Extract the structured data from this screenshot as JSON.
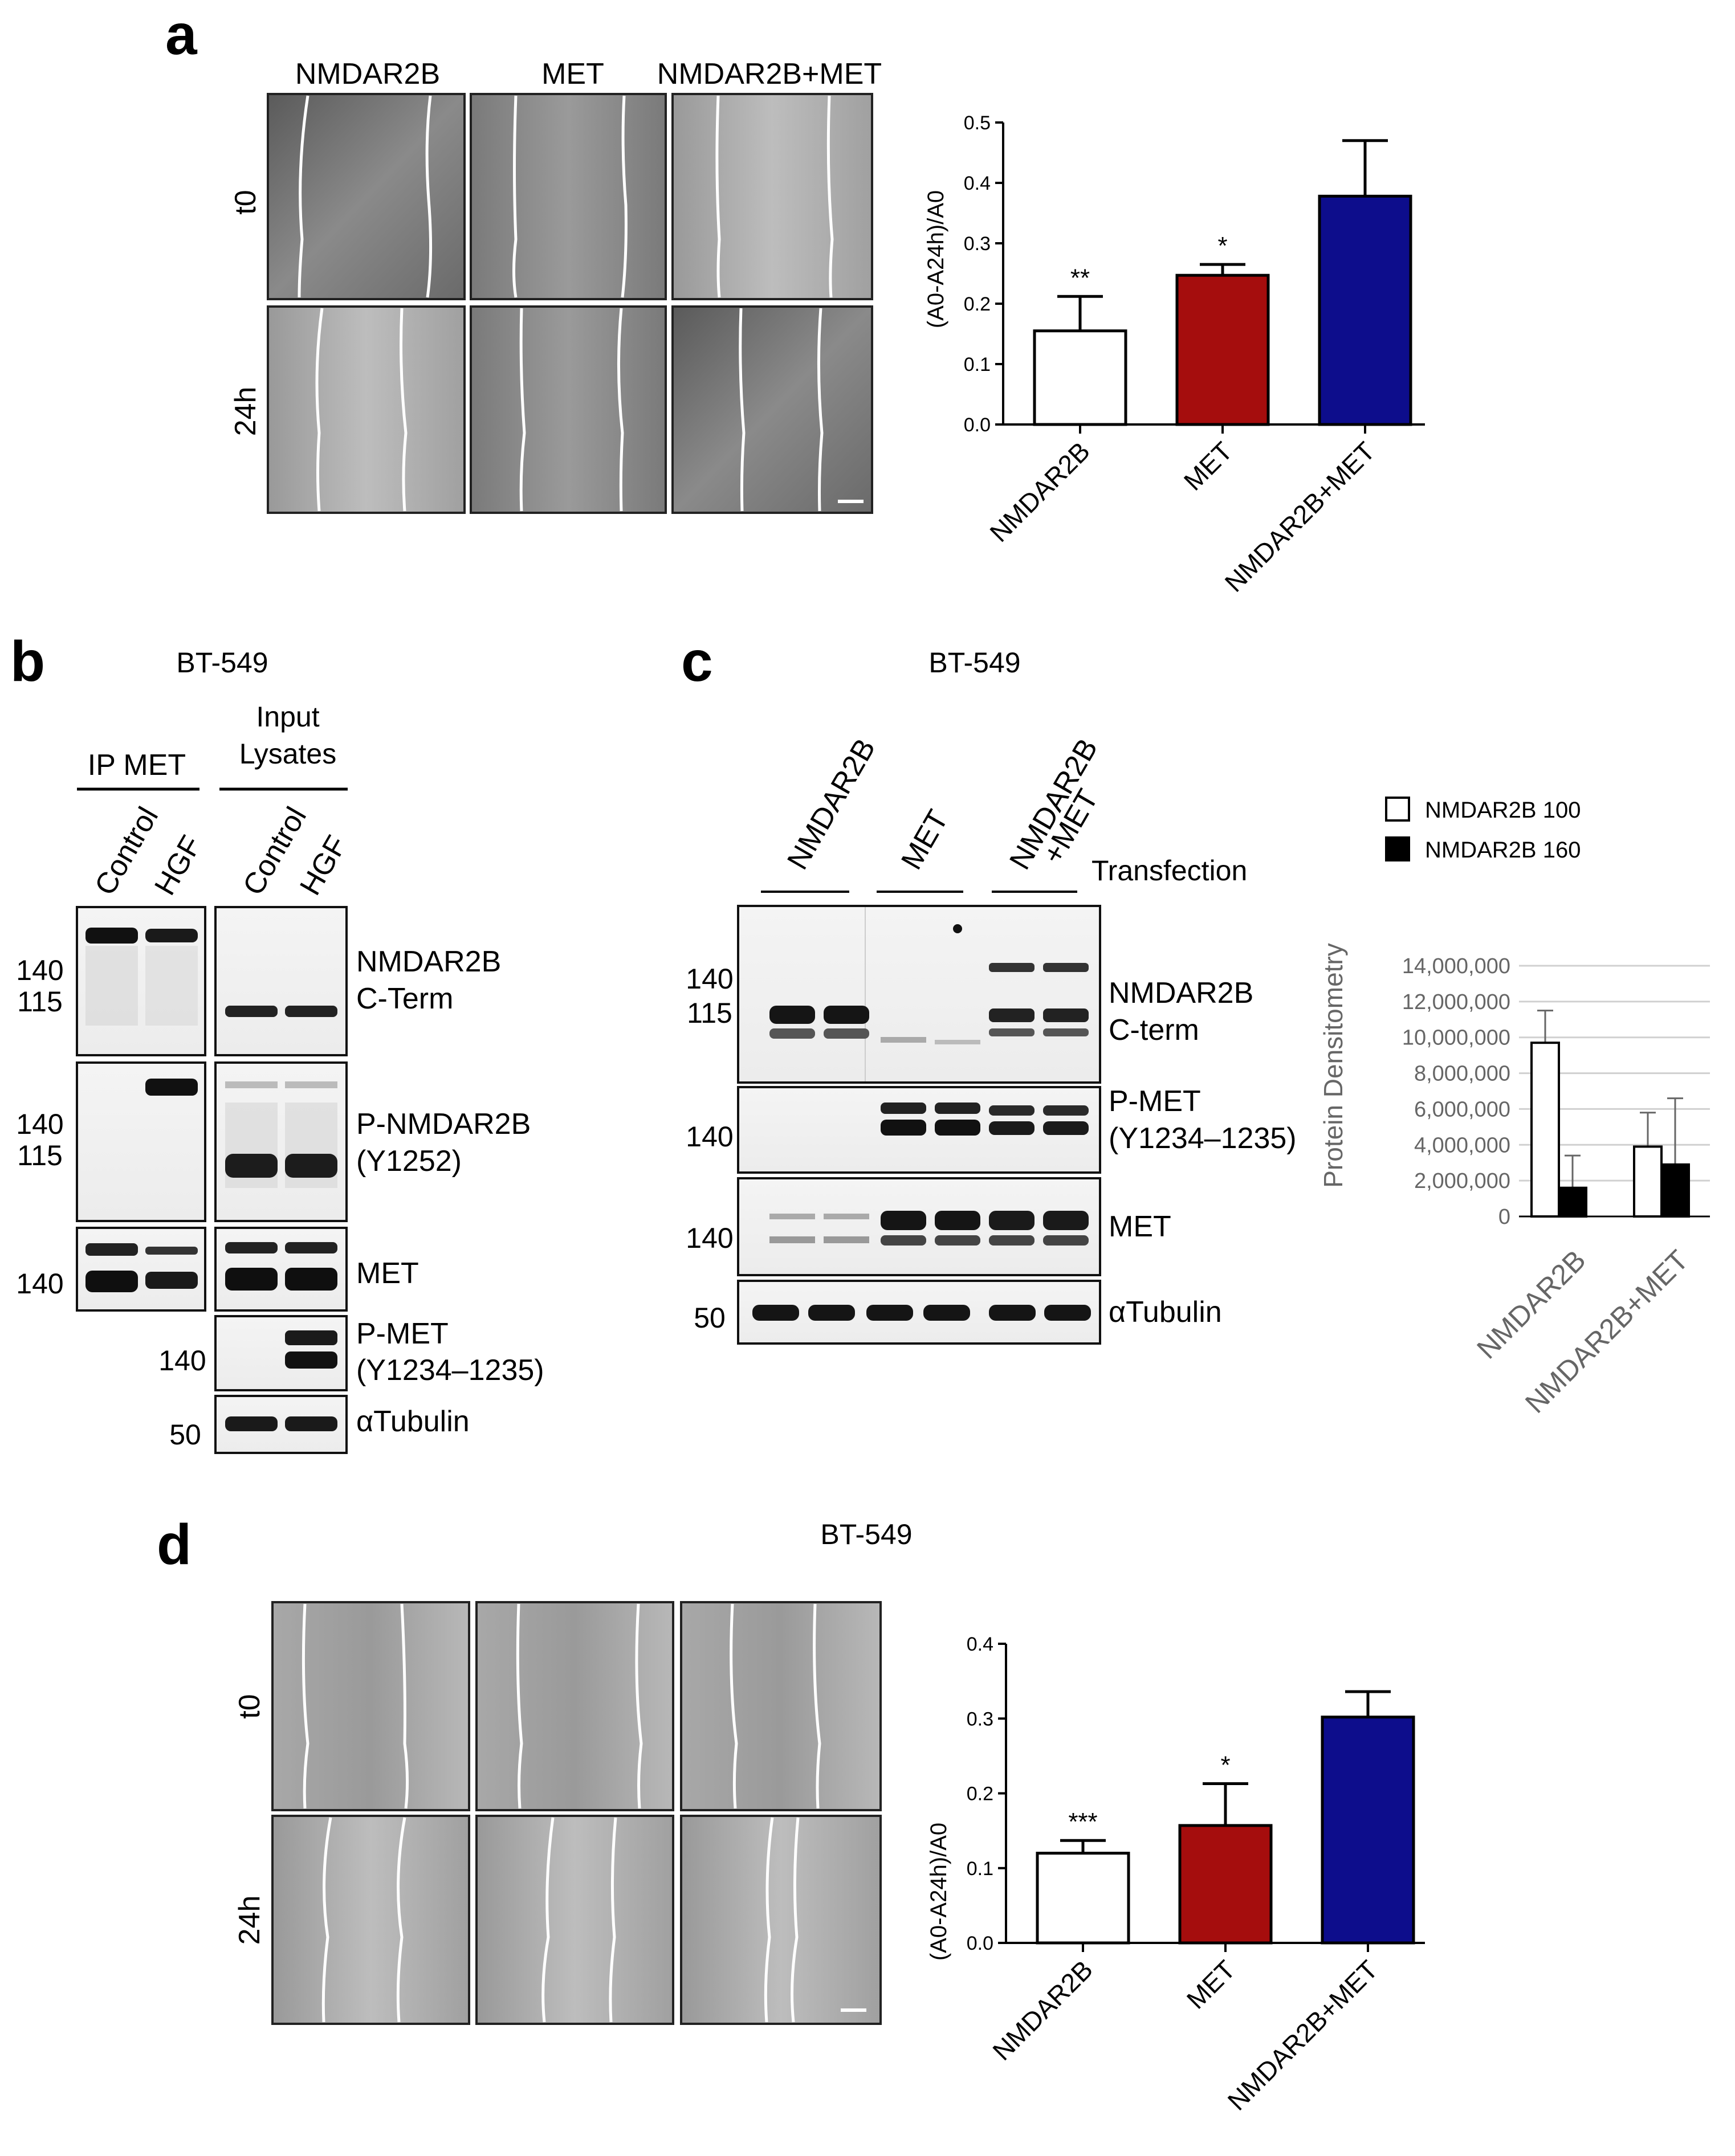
{
  "panels": {
    "a": {
      "letter": "a",
      "columns": [
        "NMDAR2B",
        "MET",
        "NMDAR2B+MET"
      ],
      "rows": [
        "t0",
        "24h"
      ],
      "chart": {
        "ylabel": "(A0-A24h)/A0",
        "categories": [
          "NMDAR2B",
          "MET",
          "NMDAR2B+MET"
        ],
        "ticks": [
          "0.0",
          "0.1",
          "0.2",
          "0.3",
          "0.4",
          "0.5"
        ],
        "significance": [
          "**",
          "*",
          ""
        ]
      }
    },
    "b": {
      "letter": "b",
      "cell_line": "BT-549",
      "group_ip": "IP MET",
      "group_input_1": "Input",
      "group_input_2": "Lysates",
      "lanes": [
        "Control",
        "HGF",
        "Control",
        "HGF"
      ],
      "blot_labels": {
        "nmdar2b_1": "NMDAR2B",
        "nmdar2b_2": "C-Term",
        "p_nmdar2b_1": "P-NMDAR2B",
        "p_nmdar2b_2": "(Y1252)",
        "met": "MET",
        "p_met_1": "P-MET",
        "p_met_2": "(Y1234–1235)",
        "tubulin": "αTubulin"
      },
      "mw": [
        "140",
        "115",
        "140",
        "115",
        "140",
        "140",
        "50"
      ]
    },
    "c": {
      "letter": "c",
      "cell_line": "BT-549",
      "groups": [
        "NMDAR2B",
        "MET",
        "NMDAR2B\n+MET"
      ],
      "group_3_line1": "NMDAR2B",
      "group_3_line2": "+MET",
      "transfection": "Transfection",
      "blot_labels": {
        "nmdar2b_1": "NMDAR2B",
        "nmdar2b_2": "C-term",
        "p_met_1": "P-MET",
        "p_met_2": "(Y1234–1235)",
        "met": "MET",
        "tubulin": "αTubulin"
      },
      "mw": [
        "140",
        "115",
        "140",
        "140",
        "50"
      ],
      "chart": {
        "ylabel": "Protein Densitometry",
        "legend": [
          "NMDAR2B 100",
          "NMDAR2B 160"
        ],
        "categories": [
          "NMDAR2B",
          "NMDAR2B+MET"
        ],
        "ticks": [
          "0",
          "2,000,000",
          "4,000,000",
          "6,000,000",
          "8,000,000",
          "10,000,000",
          "12,000,000",
          "14,000,000"
        ]
      }
    },
    "d": {
      "letter": "d",
      "cell_line": "BT-549",
      "rows": [
        "t0",
        "24h"
      ],
      "chart": {
        "ylabel": "(A0-A24h)/A0",
        "categories": [
          "NMDAR2B",
          "MET",
          "NMDAR2B+MET"
        ],
        "ticks": [
          "0.0",
          "0.1",
          "0.2",
          "0.3",
          "0.4"
        ],
        "significance": [
          "***",
          "*",
          ""
        ]
      }
    }
  },
  "colors": {
    "white": "#ffffff",
    "red": "#a50d0d",
    "blue": "#0d0d8c",
    "black": "#000000"
  },
  "chart_data": [
    {
      "type": "bar",
      "panel": "a",
      "categories": [
        "NMDAR2B",
        "MET",
        "NMDAR2B+MET"
      ],
      "values": [
        0.155,
        0.247,
        0.378
      ],
      "errors": [
        0.057,
        0.018,
        0.092
      ],
      "ylabel": "(A0-A24h)/A0",
      "ylim": [
        0,
        0.5
      ],
      "bar_colors": [
        "#ffffff",
        "#a50d0d",
        "#0d0d8c"
      ]
    },
    {
      "type": "bar",
      "panel": "c",
      "categories": [
        "NMDAR2B",
        "NMDAR2B+MET"
      ],
      "series": [
        {
          "name": "NMDAR2B 100",
          "values": [
            9700000,
            3900000
          ],
          "errors": [
            1800000,
            1900000
          ],
          "color": "#ffffff"
        },
        {
          "name": "NMDAR2B 160",
          "values": [
            1600000,
            2900000
          ],
          "errors": [
            1800000,
            3700000
          ],
          "color": "#000000"
        }
      ],
      "ylabel": "Protein Densitometry",
      "ylim": [
        0,
        14000000
      ],
      "legend": "top-right",
      "grid": true
    },
    {
      "type": "bar",
      "panel": "d",
      "categories": [
        "NMDAR2B",
        "MET",
        "NMDAR2B+MET"
      ],
      "values": [
        0.12,
        0.157,
        0.302
      ],
      "errors": [
        0.017,
        0.056,
        0.034
      ],
      "ylabel": "(A0-A24h)/A0",
      "ylim": [
        0,
        0.4
      ],
      "bar_colors": [
        "#ffffff",
        "#a50d0d",
        "#0d0d8c"
      ]
    }
  ]
}
